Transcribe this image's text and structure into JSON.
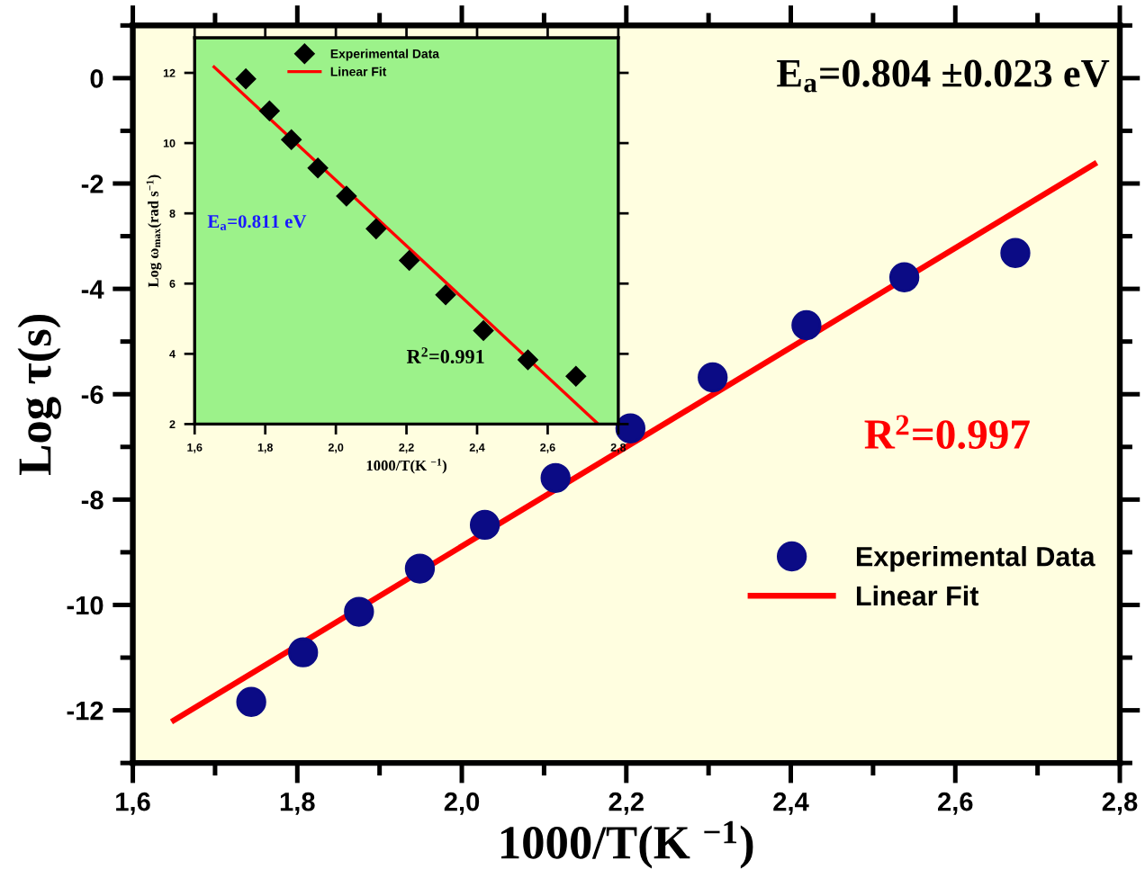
{
  "chart_data": [
    {
      "type": "scatter",
      "xlabel": "1000/T(K $^{−1}$)",
      "ylabel": "Log τ(s)",
      "xlim": [
        1.6,
        2.8
      ],
      "ylim": [
        -13,
        1
      ],
      "xticks": [
        {
          "value": 1.6,
          "label": "1,6"
        },
        {
          "value": 1.8,
          "label": "1,8"
        },
        {
          "value": 2.0,
          "label": "2,0"
        },
        {
          "value": 2.2,
          "label": "2,2"
        },
        {
          "value": 2.4,
          "label": "2,4"
        },
        {
          "value": 2.6,
          "label": "2,6"
        },
        {
          "value": 2.8,
          "label": "2,8"
        }
      ],
      "yticks": [
        0,
        -2,
        -4,
        -6,
        -8,
        -10,
        -12
      ],
      "grid": false,
      "legend": "right",
      "annotations": [
        "E$_{a}$=0.804 ±0.023 eV",
        "R$^{2}$=0.997"
      ],
      "series": [
        {
          "name": "Experimental Data",
          "marker": "circle",
          "color": "#0b0b85",
          "x": [
            1.744,
            1.807,
            1.875,
            1.949,
            2.028,
            2.114,
            2.205,
            2.305,
            2.419,
            2.538,
            2.673
          ],
          "values": [
            -11.84,
            -10.9,
            -10.13,
            -9.31,
            -8.48,
            -7.59,
            -6.65,
            -5.68,
            -4.69,
            -3.78,
            -3.32
          ]
        },
        {
          "name": "Linear Fit",
          "type": "line",
          "marker": "none",
          "line_style": "solid",
          "color": "#ff0000",
          "x": [
            1.65,
            2.769
          ],
          "values": [
            -12.19,
            -1.63
          ]
        }
      ]
    },
    {
      "type": "scatter",
      "xlabel": "1000/T(K $^{−1}$)",
      "ylabel": "Log ω$_{max}$(rad s$^{−1}$)",
      "xlim": [
        1.6,
        2.8
      ],
      "ylim": [
        2,
        13
      ],
      "xticks": [
        {
          "value": 1.6,
          "label": "1,6"
        },
        {
          "value": 1.8,
          "label": "1,8"
        },
        {
          "value": 2.0,
          "label": "2,0"
        },
        {
          "value": 2.2,
          "label": "2,2"
        },
        {
          "value": 2.4,
          "label": "2,4"
        },
        {
          "value": 2.6,
          "label": "2,6"
        },
        {
          "value": 2.8,
          "label": "2,8"
        }
      ],
      "yticks": [
        2,
        4,
        6,
        8,
        10,
        12
      ],
      "grid": false,
      "legend": "top",
      "annotations": [
        "E$_{a}$=0.811 eV",
        "R$^{2}$=0.991"
      ],
      "series": [
        {
          "name": "Experimental Data",
          "marker": "diamond",
          "color": "#000000",
          "x": [
            1.745,
            1.812,
            1.874,
            1.949,
            2.03,
            2.114,
            2.208,
            2.311,
            2.418,
            2.544,
            2.68
          ],
          "values": [
            11.83,
            10.92,
            10.1,
            9.29,
            8.49,
            7.56,
            6.66,
            5.68,
            4.66,
            3.83,
            3.36
          ]
        },
        {
          "name": "Linear Fit",
          "type": "line",
          "marker": "none",
          "line_style": "solid",
          "color": "#ff0000",
          "x": [
            1.655,
            2.743
          ],
          "values": [
            12.17,
            2.0
          ]
        }
      ]
    }
  ]
}
